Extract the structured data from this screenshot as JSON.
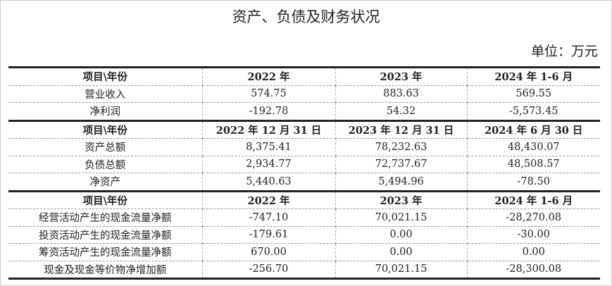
{
  "title": "资产、负债及财务状况",
  "unit": "单位：万元",
  "sections": [
    {
      "header": [
        "项目\\年份",
        "2022 年",
        "2023 年",
        "2024 年 1-6 月"
      ],
      "rows": [
        [
          "营业收入",
          "574.75",
          "883.63",
          "569.55"
        ],
        [
          "净利润",
          "-192.78",
          "54.32",
          "-5,573.45"
        ]
      ]
    },
    {
      "header": [
        "项目\\年份",
        "2022 年 12 月 31 日",
        "2023 年 12 月 31 日",
        "2024 年 6 月 30 日"
      ],
      "rows": [
        [
          "资产总额",
          "8,375.41",
          "78,232.63",
          "48,430.07"
        ],
        [
          "负债总额",
          "2,934.77",
          "72,737.67",
          "48,508.57"
        ],
        [
          "净资产",
          "5,440.63",
          "5,494.96",
          "-78.50"
        ]
      ]
    },
    {
      "header": [
        "项目\\年份",
        "2022 年",
        "2023 年",
        "2024 年 1-6 月"
      ],
      "rows": [
        [
          "经营活动产生的现金流量净额",
          "-747.10",
          "70,021.15",
          "-28,270.08"
        ],
        [
          "投资活动产生的现金流量净额",
          "-179.61",
          "0.00",
          "-30.00"
        ],
        [
          "筹资活动产生的现金流量净额",
          "670.00",
          "0.00",
          "0.00"
        ],
        [
          "现金及现金等价物净增加额",
          "-256.70",
          "70,021.15",
          "-28,300.08"
        ]
      ]
    }
  ]
}
